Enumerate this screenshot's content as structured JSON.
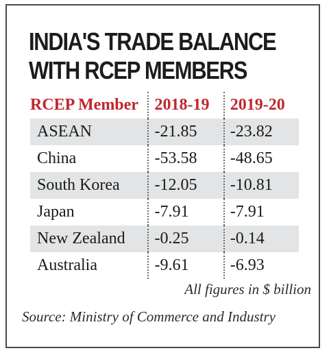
{
  "chart_data": {
    "type": "table",
    "title": [
      "INDIA'S TRADE BALANCE",
      "WITH RCEP MEMBERS"
    ],
    "columns": [
      "RCEP Member",
      "2018-19",
      "2019-20"
    ],
    "rows": [
      {
        "member": "ASEAN",
        "v2018_19": "-21.85",
        "v2019_20": "-23.82"
      },
      {
        "member": "China",
        "v2018_19": "-53.58",
        "v2019_20": "-48.65"
      },
      {
        "member": "South Korea",
        "v2018_19": "-12.05",
        "v2019_20": "-10.81"
      },
      {
        "member": "Japan",
        "v2018_19": "-7.91",
        "v2019_20": "-7.91"
      },
      {
        "member": "New Zealand",
        "v2018_19": "-0.25",
        "v2019_20": "-0.14"
      },
      {
        "member": "Australia",
        "v2018_19": "-9.61",
        "v2019_20": "-6.93"
      }
    ],
    "units_note": "All figures in $ billion",
    "source": "Source: Ministry of Commerce and Industry"
  },
  "colors": {
    "header_text": "#c0262d",
    "row_shade": "#e3e4e5",
    "border": "#4a4a4a"
  }
}
